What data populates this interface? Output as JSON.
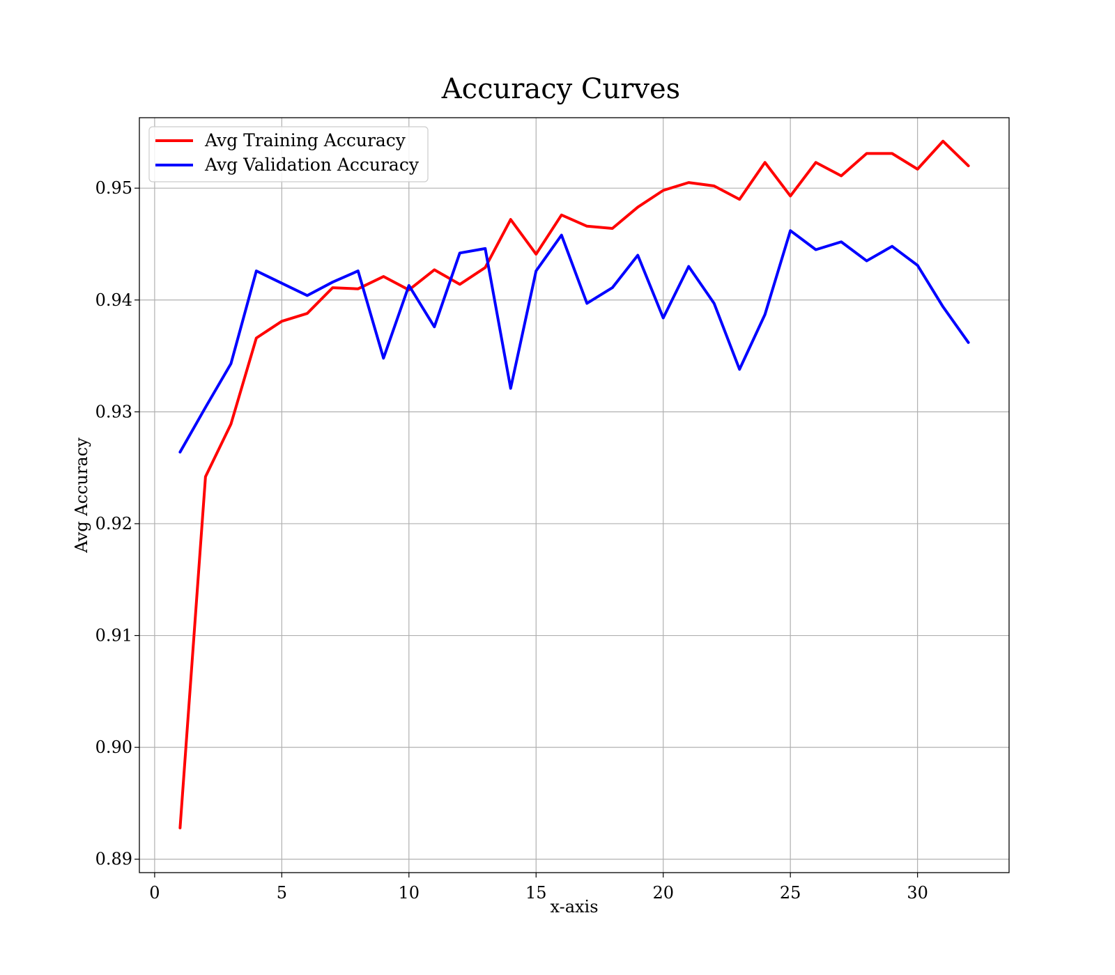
{
  "chart_data": {
    "type": "line",
    "title": "Accuracy Curves",
    "xlabel": "x-axis",
    "ylabel": "Avg Accuracy",
    "xlim": [
      -0.6,
      33.6
    ],
    "ylim": [
      0.8888,
      0.9563
    ],
    "xticks": [
      0,
      5,
      10,
      15,
      20,
      25,
      30
    ],
    "xtick_labels": [
      "0",
      "5",
      "10",
      "15",
      "20",
      "25",
      "30"
    ],
    "yticks": [
      0.89,
      0.9,
      0.91,
      0.92,
      0.93,
      0.94,
      0.95
    ],
    "ytick_labels": [
      "0.89",
      "0.90",
      "0.91",
      "0.92",
      "0.93",
      "0.94",
      "0.95"
    ],
    "grid": true,
    "legend_position": "top-left",
    "x": [
      1,
      2,
      3,
      4,
      5,
      6,
      7,
      8,
      9,
      10,
      11,
      12,
      13,
      14,
      15,
      16,
      17,
      18,
      19,
      20,
      21,
      22,
      23,
      24,
      25,
      26,
      27,
      28,
      29,
      30,
      31,
      32
    ],
    "series": [
      {
        "name": "Avg Training Accuracy",
        "color": "#ff0000",
        "values": [
          0.8928,
          0.9242,
          0.9289,
          0.9366,
          0.9381,
          0.9388,
          0.9411,
          0.941,
          0.9421,
          0.9409,
          0.9427,
          0.9414,
          0.9429,
          0.9472,
          0.9441,
          0.9476,
          0.9466,
          0.9464,
          0.9483,
          0.9498,
          0.9505,
          0.9502,
          0.949,
          0.9523,
          0.9493,
          0.9523,
          0.9511,
          0.9531,
          0.9531,
          0.9517,
          0.9542,
          0.952
        ]
      },
      {
        "name": "Avg Validation Accuracy",
        "color": "#0000ff",
        "values": [
          0.9264,
          0.9304,
          0.9343,
          0.9426,
          0.9415,
          0.9404,
          0.9416,
          0.9426,
          0.9348,
          0.9413,
          0.9376,
          0.9442,
          0.9446,
          0.9321,
          0.9426,
          0.9458,
          0.9397,
          0.9411,
          0.944,
          0.9384,
          0.943,
          0.9397,
          0.9338,
          0.9387,
          0.9462,
          0.9445,
          0.9452,
          0.9435,
          0.9448,
          0.9431,
          0.9394,
          0.9362
        ]
      }
    ]
  }
}
